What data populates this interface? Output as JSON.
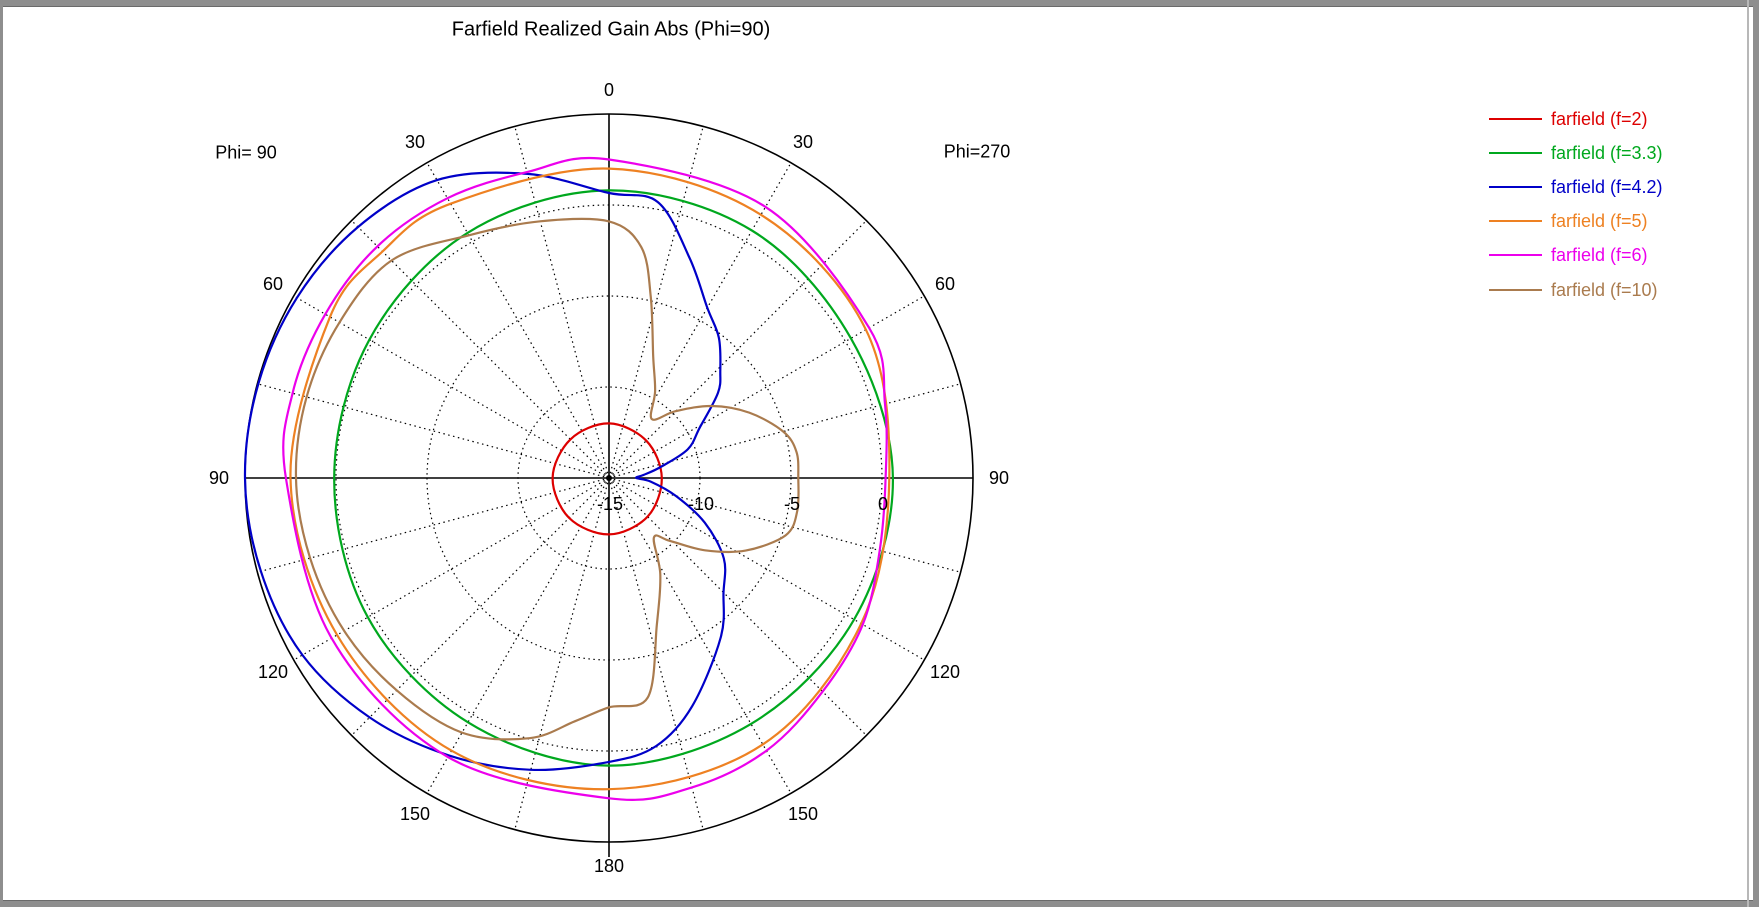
{
  "title": "Farfield Realized Gain Abs (Phi=90)",
  "plot": {
    "left_axis_label": "Phi= 90",
    "right_axis_label": "Phi=270",
    "angle_labels": [
      {
        "text": "0",
        "deg": 0
      },
      {
        "text": "30",
        "deg": -30
      },
      {
        "text": "30",
        "deg": 30
      },
      {
        "text": "60",
        "deg": -60
      },
      {
        "text": "60",
        "deg": 60
      },
      {
        "text": "90",
        "deg": -90
      },
      {
        "text": "90",
        "deg": 90
      },
      {
        "text": "120",
        "deg": -120
      },
      {
        "text": "120",
        "deg": 120
      },
      {
        "text": "150",
        "deg": -150
      },
      {
        "text": "150",
        "deg": 150
      },
      {
        "text": "180",
        "deg": 180
      }
    ],
    "radial_labels": [
      {
        "text": "-15",
        "db": -15
      },
      {
        "text": "-10",
        "db": -10
      },
      {
        "text": "-5",
        "db": -5
      },
      {
        "text": "0",
        "db": 0
      }
    ]
  },
  "legend": {
    "items": [
      {
        "label": "farfield (f=2)",
        "color": "#dd0000"
      },
      {
        "label": "farfield (f=3.3)",
        "color": "#00a81e"
      },
      {
        "label": "farfield (f=4.2)",
        "color": "#0000c8"
      },
      {
        "label": "farfield (f=5)",
        "color": "#ee8122"
      },
      {
        "label": "farfield (f=6)",
        "color": "#ec00ec"
      },
      {
        "label": "farfield (f=10)",
        "color": "#aa7b4e"
      }
    ]
  },
  "chart_data": {
    "type": "line",
    "polar": true,
    "title": "Farfield Realized Gain Abs (Phi=90)",
    "r_axis": {
      "unit": "dB",
      "min": -15,
      "max": 5,
      "step": 5,
      "dotted_rings_db": [
        -10,
        -5,
        0
      ]
    },
    "theta_axis": {
      "convention": "theta in degrees; 0 = up; negative = left half (Phi=90 cut side), positive = right half (Phi=270 side)",
      "grid_step_deg": 15,
      "label_step_deg": 30
    },
    "series": [
      {
        "name": "farfield (f=2)",
        "color": "#dd0000",
        "points": [
          [
            -180,
            -11.9
          ],
          [
            -135,
            -11.9
          ],
          [
            -90,
            -11.9
          ],
          [
            -45,
            -12.0
          ],
          [
            0,
            -12.0
          ],
          [
            45,
            -12.1
          ],
          [
            90,
            -12.1
          ],
          [
            135,
            -12.0
          ],
          [
            180,
            -11.9
          ]
        ]
      },
      {
        "name": "farfield (f=3.3)",
        "color": "#00a81e",
        "points": [
          [
            -180,
            0.8
          ],
          [
            -150,
            0.5
          ],
          [
            -120,
            0.3
          ],
          [
            -90,
            0.1
          ],
          [
            -60,
            0.2
          ],
          [
            -30,
            0.55
          ],
          [
            0,
            0.8
          ],
          [
            30,
            0.7
          ],
          [
            60,
            0.35
          ],
          [
            90,
            0.6
          ],
          [
            120,
            0.55
          ],
          [
            150,
            0.6
          ],
          [
            180,
            0.8
          ]
        ]
      },
      {
        "name": "farfield (f=4.2)",
        "color": "#0000c8",
        "points": [
          [
            -180,
            0.6
          ],
          [
            -165,
            1.6
          ],
          [
            -150,
            2.6
          ],
          [
            -135,
            3.6
          ],
          [
            -120,
            4.45
          ],
          [
            -105,
            4.8
          ],
          [
            -90,
            5.0
          ],
          [
            -75,
            4.95
          ],
          [
            -60,
            4.8
          ],
          [
            -45,
            4.5
          ],
          [
            -30,
            3.9
          ],
          [
            -15,
            2.3
          ],
          [
            0,
            0.66
          ],
          [
            10,
            0.4
          ],
          [
            20,
            -2.1
          ],
          [
            30,
            -4.2
          ],
          [
            38,
            -5.2
          ],
          [
            46,
            -6.5
          ],
          [
            52,
            -7.4
          ],
          [
            61,
            -9.3
          ],
          [
            70,
            -10.4
          ],
          [
            78,
            -12.1
          ],
          [
            85,
            -13.1
          ],
          [
            90,
            -13.5
          ],
          [
            95,
            -12.7
          ],
          [
            105,
            -11.2
          ],
          [
            115,
            -9.2
          ],
          [
            125,
            -7.3
          ],
          [
            135,
            -6.1
          ],
          [
            145,
            -4.3
          ],
          [
            160,
            -1.65
          ],
          [
            170,
            -0.05
          ],
          [
            180,
            0.6
          ]
        ]
      },
      {
        "name": "farfield (f=5)",
        "color": "#ee8122",
        "points": [
          [
            -180,
            2.1
          ],
          [
            -150,
            2.3
          ],
          [
            -120,
            2.25
          ],
          [
            -90,
            2.5
          ],
          [
            -60,
            2.7
          ],
          [
            -45,
            2.6
          ],
          [
            -30,
            2.4
          ],
          [
            0,
            2.0
          ],
          [
            30,
            1.7
          ],
          [
            60,
            1.3
          ],
          [
            90,
            0.4
          ],
          [
            120,
            1.0
          ],
          [
            150,
            1.9
          ],
          [
            180,
            2.1
          ]
        ]
      },
      {
        "name": "farfield (f=6)",
        "color": "#ec00ec",
        "points": [
          [
            -180,
            2.6
          ],
          [
            -150,
            2.7
          ],
          [
            -120,
            2.6
          ],
          [
            -90,
            2.75
          ],
          [
            -75,
            3.0
          ],
          [
            -60,
            3.0
          ],
          [
            -45,
            3.0
          ],
          [
            -30,
            2.75
          ],
          [
            -15,
            2.4
          ],
          [
            0,
            2.5
          ],
          [
            30,
            2.2
          ],
          [
            60,
            1.5
          ],
          [
            75,
            0.7
          ],
          [
            90,
            0.2
          ],
          [
            105,
            0.4
          ],
          [
            120,
            1.1
          ],
          [
            135,
            1.6
          ],
          [
            150,
            2.3
          ],
          [
            165,
            2.6
          ],
          [
            180,
            2.6
          ]
        ]
      },
      {
        "name": "farfield (f=10)",
        "color": "#aa7b4e",
        "points": [
          [
            -180,
            -2.4
          ],
          [
            -172,
            -1.5
          ],
          [
            -163,
            -0.05
          ],
          [
            -150,
            1.15
          ],
          [
            -135,
            1.5
          ],
          [
            -120,
            1.8
          ],
          [
            -105,
            2.0
          ],
          [
            -90,
            2.2
          ],
          [
            -75,
            2.2
          ],
          [
            -60,
            2.1
          ],
          [
            -45,
            1.9
          ],
          [
            -30,
            0.4
          ],
          [
            -15,
            -0.4
          ],
          [
            0,
            -0.9
          ],
          [
            8,
            -2.2
          ],
          [
            13,
            -4.8
          ],
          [
            20,
            -7.9
          ],
          [
            28,
            -9.6
          ],
          [
            36,
            -11.0
          ],
          [
            45,
            -9.8
          ],
          [
            55,
            -8.1
          ],
          [
            65,
            -6.5
          ],
          [
            75,
            -5.1
          ],
          [
            82,
            -4.6
          ],
          [
            90,
            -4.6
          ],
          [
            100,
            -4.5
          ],
          [
            108,
            -4.8
          ],
          [
            118,
            -6.5
          ],
          [
            127,
            -8.4
          ],
          [
            136,
            -10.2
          ],
          [
            143,
            -10.9
          ],
          [
            152,
            -9.0
          ],
          [
            162,
            -6.5
          ],
          [
            170,
            -2.75
          ],
          [
            180,
            -2.4
          ]
        ]
      }
    ]
  }
}
